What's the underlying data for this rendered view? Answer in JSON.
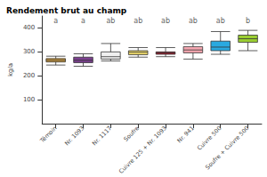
{
  "chart_data": {
    "type": "boxplot",
    "title": "Rendement brut au champ",
    "y_label": "kg/a",
    "categories": [
      "Témoin",
      "Nr. 1093",
      "Nr. 1117",
      "Soufre",
      "Cuivre 125 + Nr. 1093",
      "Nr. 941",
      "Cuivre 500",
      "Soufre + Cuivre 500"
    ],
    "values": [
      [
        245,
        258,
        265,
        272,
        282
      ],
      [
        240,
        255,
        265,
        278,
        292
      ],
      [
        262,
        270,
        280,
        300,
        335
      ],
      [
        278,
        288,
        298,
        305,
        318
      ],
      [
        280,
        290,
        296,
        300,
        318
      ],
      [
        270,
        296,
        308,
        322,
        335
      ],
      [
        290,
        305,
        320,
        345,
        385
      ],
      [
        305,
        340,
        355,
        370,
        390
      ]
    ],
    "colors": [
      "#d9a441",
      "#7b3f8f",
      "#f0f0f0",
      "#f5e06e",
      "#b2182b",
      "#f4a6b0",
      "#29a9e0",
      "#9acd32"
    ],
    "annotations": [
      {
        "text": "a",
        "y": 430
      },
      {
        "text": "a",
        "y": 430
      },
      {
        "text": "ab",
        "y": 430
      },
      {
        "text": "ab",
        "y": 430
      },
      {
        "text": "ab",
        "y": 430
      },
      {
        "text": "ab",
        "y": 430
      },
      {
        "text": "ab",
        "y": 430
      },
      {
        "text": "b",
        "y": 430
      }
    ],
    "ylim": [
      0,
      450
    ],
    "yticks": [
      100,
      200,
      300,
      400
    ],
    "grid": false
  }
}
